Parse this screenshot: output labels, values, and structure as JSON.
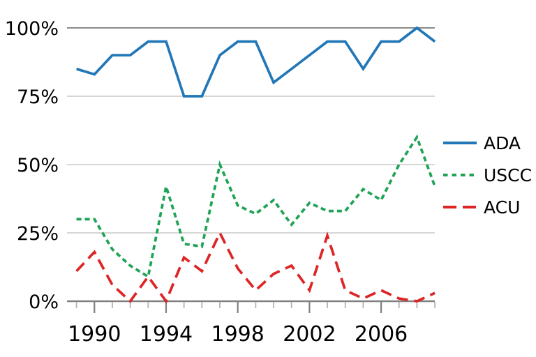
{
  "page": {
    "background": "#ffffff"
  },
  "chart_data": {
    "type": "line",
    "title": "",
    "xlabel": "",
    "ylabel": "",
    "x": [
      1989,
      1990,
      1991,
      1992,
      1993,
      1994,
      1995,
      1996,
      1997,
      1998,
      1999,
      2000,
      2001,
      2002,
      2003,
      2004,
      2005,
      2006,
      2007,
      2008,
      2009
    ],
    "series": [
      {
        "name": "ADA",
        "color": "#2277b8",
        "dash": "solid",
        "values": [
          85,
          83,
          90,
          90,
          95,
          95,
          75,
          75,
          90,
          95,
          95,
          80,
          85,
          90,
          95,
          95,
          85,
          95,
          95,
          100,
          95
        ]
      },
      {
        "name": "USCC",
        "color": "#1fa356",
        "dash": "dotted",
        "values": [
          30,
          30,
          19,
          13,
          9,
          42,
          21,
          20,
          50,
          35,
          32,
          37,
          28,
          36,
          33,
          33,
          41,
          37,
          50,
          60,
          42
        ]
      },
      {
        "name": "ACU",
        "color": "#dd2526",
        "dash": "dashed",
        "values": [
          11,
          18,
          6,
          0,
          9,
          0,
          16,
          11,
          25,
          12,
          4,
          10,
          13,
          4,
          24,
          4,
          1,
          4,
          1,
          0,
          3
        ]
      }
    ],
    "ylim": [
      0,
      100
    ],
    "xlim": [
      1988.5,
      2009
    ],
    "y_ticks": [
      {
        "label": "100%",
        "value": 100
      },
      {
        "label": "75%",
        "value": 75
      },
      {
        "label": "50%",
        "value": 50
      },
      {
        "label": "25%",
        "value": 25
      },
      {
        "label": "0%",
        "value": 0
      }
    ],
    "x_major_ticks": [
      1990,
      1994,
      1998,
      2002,
      2006
    ],
    "grid": true,
    "legend_position": "right"
  },
  "colors": {
    "grid_light": "#c8c8c8",
    "grid_dark": "#8a8a8a",
    "axis": "#808080",
    "tick_minor": "#b3b3b3",
    "text": "#000000"
  }
}
